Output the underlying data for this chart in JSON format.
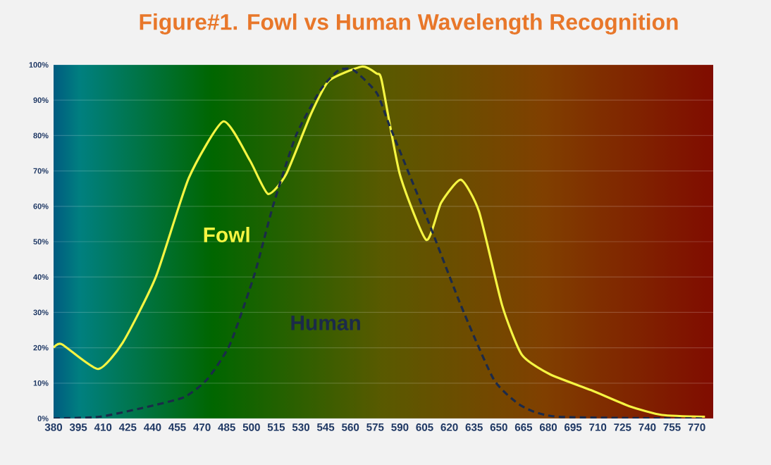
{
  "chart_data": {
    "type": "line",
    "title": "Figure#1. Fowl vs Human Wavelength Recognition",
    "xlim": [
      380,
      780
    ],
    "xticks": [
      380,
      395,
      410,
      425,
      440,
      455,
      470,
      485,
      500,
      515,
      530,
      545,
      560,
      575,
      590,
      605,
      620,
      635,
      650,
      665,
      680,
      695,
      710,
      725,
      740,
      755,
      770
    ],
    "ylim": [
      0,
      100
    ],
    "yticks": [
      {
        "value": 0,
        "label": "0%"
      },
      {
        "value": 10,
        "label": "10%"
      },
      {
        "value": 20,
        "label": "20%"
      },
      {
        "value": 30,
        "label": "30%"
      },
      {
        "value": 40,
        "label": "40%"
      },
      {
        "value": 50,
        "label": "50%"
      },
      {
        "value": 60,
        "label": "60%"
      },
      {
        "value": 70,
        "label": "70%"
      },
      {
        "value": 80,
        "label": "80%"
      },
      {
        "value": 90,
        "label": "90%"
      },
      {
        "value": 100,
        "label": "100%"
      }
    ],
    "grid": "y",
    "marker": "none",
    "series": [
      {
        "name": "Fowl",
        "color": "#f5f542",
        "line_style": "solid",
        "x": [
          380,
          385,
          407,
          422,
          442,
          462,
          483,
          499,
          510,
          521,
          536,
          547,
          567,
          576,
          579,
          590,
          606,
          615,
          627,
          638,
          652,
          664,
          681,
          706,
          729,
          749,
          775
        ],
        "values": [
          20,
          21,
          14,
          21.5,
          40,
          68,
          84,
          73,
          63.5,
          69,
          86,
          95.5,
          99.5,
          97.5,
          95.5,
          69,
          50.5,
          61,
          67.5,
          58.5,
          32,
          18,
          12.5,
          8,
          3.5,
          1,
          0.5
        ]
      },
      {
        "name": "Human",
        "color": "#1b2a4a",
        "line_style": "dashed",
        "x": [
          380,
          408,
          434,
          459,
          473,
          487,
          502,
          513,
          527,
          542,
          553,
          562,
          576,
          584,
          607,
          627,
          647,
          664,
          686,
          775
        ],
        "values": [
          0,
          0.5,
          3,
          6,
          11,
          21,
          41,
          60,
          80,
          93,
          98.5,
          98.5,
          92,
          82.5,
          56,
          32,
          11,
          3.5,
          0.5,
          0
        ]
      }
    ]
  }
}
